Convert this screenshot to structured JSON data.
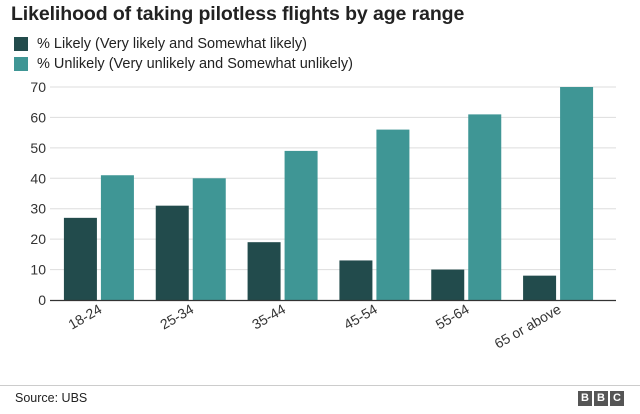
{
  "title": "Likelihood of taking pilotless flights by age range",
  "source": "Source: UBS",
  "logo": "BBC",
  "colors": {
    "likely": "#224b4c",
    "unlikely": "#3f9695",
    "grid": "#dddddd",
    "axis": "#333333"
  },
  "chart_data": {
    "type": "bar",
    "title": "Likelihood of taking pilotless flights by age range",
    "xlabel": "",
    "ylabel": "",
    "categories": [
      "18-24",
      "25-34",
      "35-44",
      "45-54",
      "55-64",
      "65 or above"
    ],
    "series": [
      {
        "name": "% Likely (Very likely and Somewhat likely)",
        "values": [
          27,
          31,
          19,
          13,
          10,
          8
        ]
      },
      {
        "name": "% Unlikely (Very unlikely and Somewhat unlikely)",
        "values": [
          41,
          40,
          49,
          56,
          61,
          70
        ]
      }
    ],
    "ylim": [
      0,
      70
    ],
    "yticks": [
      0,
      10,
      20,
      30,
      40,
      50,
      60,
      70
    ],
    "grid": true,
    "legend": "top-left"
  }
}
